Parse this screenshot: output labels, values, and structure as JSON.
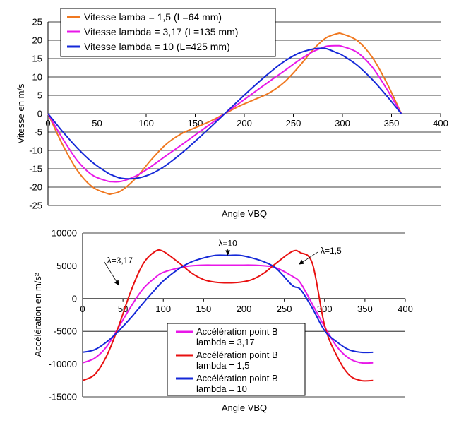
{
  "chart_data": [
    {
      "type": "line",
      "title": "",
      "xlabel": "Angle VBQ",
      "ylabel": "Vitesse en m/s",
      "xlim": [
        0,
        400
      ],
      "ylim": [
        -25,
        25
      ],
      "xticks": [
        0,
        50,
        100,
        150,
        200,
        250,
        300,
        350,
        400
      ],
      "yticks": [
        -25,
        -20,
        -15,
        -10,
        -5,
        0,
        5,
        10,
        15,
        20,
        25
      ],
      "grid": "horizontal",
      "legend_position": "top-left",
      "x": [
        0,
        15,
        30,
        45,
        60,
        65,
        75,
        90,
        105,
        120,
        135,
        150,
        165,
        180,
        195,
        210,
        225,
        240,
        255,
        270,
        280,
        285,
        295,
        300,
        315,
        330,
        345,
        360
      ],
      "series": [
        {
          "name": "Vitesse lamba = 1,5 (L=64 mm)",
          "color": "#F07820",
          "values": [
            0,
            -8.5,
            -15.5,
            -19.9,
            -21.7,
            -21.8,
            -20.9,
            -17.4,
            -12.6,
            -8.4,
            -5.6,
            -3.8,
            -2.1,
            0,
            2.1,
            3.8,
            5.6,
            8.4,
            12.6,
            17.4,
            20.0,
            20.9,
            21.8,
            21.7,
            19.9,
            15.5,
            8.5,
            0
          ]
        },
        {
          "name": "Vitesse lambda = 3,17 (L=135 mm)",
          "color": "#E817E8",
          "values": [
            0,
            -6.8,
            -12.8,
            -16.7,
            -18.3,
            -18.5,
            -18.4,
            -16.9,
            -14.4,
            -11.5,
            -8.7,
            -5.8,
            -2.9,
            0,
            2.9,
            5.8,
            8.7,
            11.5,
            14.4,
            16.9,
            18.0,
            18.4,
            18.5,
            18.3,
            16.7,
            12.8,
            6.8,
            0
          ]
        },
        {
          "name": "Vitesse lambda = 10 (L=425 mm)",
          "color": "#1428D8",
          "values": [
            0,
            -4.9,
            -9.4,
            -13.2,
            -16.0,
            -16.7,
            -17.6,
            -17.6,
            -16.4,
            -14.1,
            -11.0,
            -7.5,
            -3.8,
            0,
            3.8,
            7.5,
            11.0,
            14.1,
            16.4,
            17.6,
            17.8,
            17.6,
            16.5,
            15.9,
            13.2,
            9.4,
            4.9,
            0
          ]
        }
      ]
    },
    {
      "type": "line",
      "title": "",
      "xlabel": "Angle VBQ",
      "ylabel": "Accélération en m/s²",
      "xlim": [
        0,
        400
      ],
      "ylim": [
        -15000,
        10000
      ],
      "xticks": [
        0,
        50,
        100,
        150,
        200,
        250,
        300,
        350,
        400
      ],
      "yticks": [
        -15000,
        -10000,
        -5000,
        0,
        5000,
        10000
      ],
      "grid": "horizontal",
      "legend_position": "bottom-center",
      "x": [
        0,
        15,
        30,
        45,
        60,
        75,
        90,
        100,
        120,
        135,
        150,
        165,
        180,
        195,
        210,
        225,
        240,
        260,
        270,
        285,
        300,
        315,
        330,
        345,
        360
      ],
      "series": [
        {
          "name": "Accélération point B lambda = 3,17",
          "color": "#E817E8",
          "values": [
            -9800,
            -9100,
            -7300,
            -4300,
            -1200,
            1500,
            3200,
            4000,
            4700,
            5000,
            5100,
            5100,
            5100,
            5100,
            5100,
            5000,
            4700,
            3400,
            2400,
            -900,
            -4300,
            -7300,
            -9100,
            -9800,
            -9800
          ]
        },
        {
          "name": "Accélération point B lambda = 1,5",
          "color": "#E81010",
          "values": [
            -12500,
            -11600,
            -8700,
            -4100,
            1200,
            5300,
            7200,
            7200,
            5400,
            3900,
            2900,
            2500,
            2400,
            2500,
            2900,
            3900,
            5400,
            7200,
            7000,
            5300,
            -4100,
            -8700,
            -11600,
            -12500,
            -12500
          ]
        },
        {
          "name": "Accélération point B lambda = 10",
          "color": "#1428D8",
          "values": [
            -8200,
            -7800,
            -6600,
            -4900,
            -2900,
            -700,
            1400,
            2700,
            4600,
            5600,
            6200,
            6600,
            6600,
            6600,
            6200,
            5600,
            4600,
            2000,
            1400,
            -1500,
            -4900,
            -6600,
            -7800,
            -8200,
            -8200
          ]
        }
      ],
      "annotations": [
        {
          "text": "λ=3,17",
          "x": 45,
          "y": 2000,
          "label_x": 20,
          "label_y": 5800
        },
        {
          "text": "λ=10",
          "x": 180,
          "y": 6600,
          "label_x": 180,
          "label_y": 8000
        },
        {
          "text": "λ=1,5",
          "x": 268,
          "y": 5200,
          "label_x": 295,
          "label_y": 7300
        }
      ]
    }
  ]
}
